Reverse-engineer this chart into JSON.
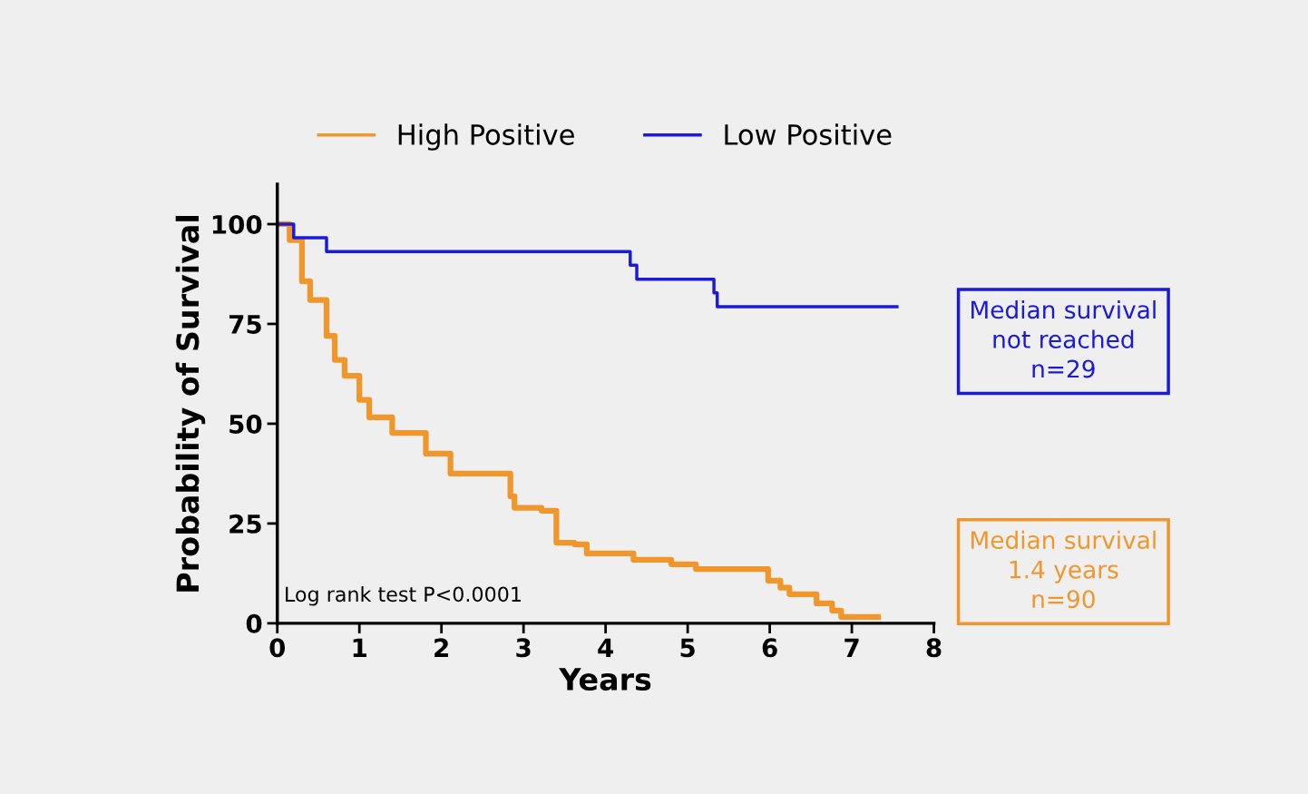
{
  "chart_data": {
    "type": "step",
    "xlabel": "Years",
    "ylabel": "Probability of Survival",
    "xlim": [
      0,
      8
    ],
    "xticks": [
      0,
      1,
      2,
      3,
      4,
      5,
      6,
      7,
      8
    ],
    "ylim": [
      0,
      110
    ],
    "yticks": [
      0,
      25,
      50,
      75,
      100
    ],
    "legend": "top",
    "grid": false,
    "series": [
      {
        "name": "High Positive",
        "color": "#f0962a",
        "x": [
          0,
          0.15,
          0.3,
          0.4,
          0.6,
          0.7,
          0.82,
          1.0,
          1.12,
          1.37,
          1.4,
          1.63,
          1.81,
          2.03,
          2.11,
          2.51,
          2.84,
          2.89,
          3.22,
          3.4,
          3.62,
          3.77,
          4.28,
          4.34,
          4.77,
          4.8,
          5.08,
          5.1,
          5.83,
          5.98,
          6.13,
          6.24,
          6.49,
          6.57,
          6.76,
          6.87,
          7.32
        ],
        "values": [
          100,
          96,
          85.7,
          81,
          72,
          66,
          62,
          56,
          51.6,
          51.6,
          47.7,
          47.7,
          42.5,
          42.5,
          37.5,
          37.5,
          31.8,
          28.9,
          28.2,
          20.2,
          19.8,
          17.5,
          17.5,
          15.9,
          15.9,
          14.8,
          14.8,
          13.6,
          13.6,
          10.7,
          8.9,
          7.3,
          7.3,
          5,
          3.2,
          1.6,
          1.6
        ]
      },
      {
        "name": "Low Positive",
        "color": "#1a1ad8",
        "x": [
          0,
          0.2,
          0.6,
          4.3,
          4.38,
          5.32,
          5.36,
          7.55
        ],
        "values": [
          100,
          96.6,
          93.1,
          89.7,
          86.2,
          82.8,
          79.3,
          79.3
        ]
      }
    ],
    "annotations": [
      "Log rank test P<0.0001",
      "Median survival\nnot reached\nn=29",
      "Median survival\n1.4 years\nn=90"
    ]
  }
}
